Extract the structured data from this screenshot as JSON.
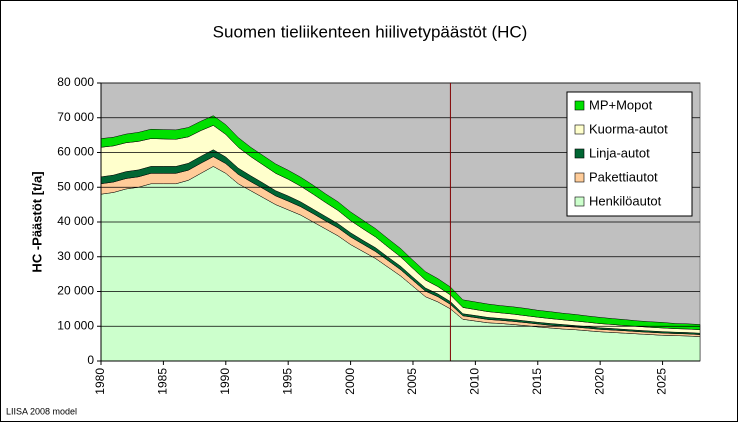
{
  "chart_data": {
    "type": "stacked-area",
    "title": "Suomen tieliikenteen hiilivetypäästöt (HC)",
    "y_label": "HC -Päästöt [t/a]",
    "footnote": "LIISA 2008 model",
    "x": [
      1980,
      1981,
      1982,
      1983,
      1984,
      1985,
      1986,
      1987,
      1988,
      1989,
      1990,
      1991,
      1992,
      1993,
      1994,
      1995,
      1996,
      1997,
      1998,
      1999,
      2000,
      2001,
      2002,
      2003,
      2004,
      2005,
      2006,
      2007,
      2008,
      2009,
      2010,
      2011,
      2012,
      2013,
      2014,
      2015,
      2016,
      2017,
      2018,
      2019,
      2020,
      2021,
      2022,
      2023,
      2024,
      2025,
      2026,
      2027,
      2028
    ],
    "series": [
      {
        "name": "Henkilöautot",
        "color": "#ccffcc",
        "values": [
          48000,
          48500,
          49500,
          50000,
          51000,
          51000,
          51000,
          52000,
          54000,
          56000,
          54000,
          51000,
          49000,
          47000,
          45000,
          43500,
          42000,
          40000,
          38000,
          36000,
          33500,
          31500,
          29500,
          27000,
          24500,
          21500,
          18500,
          17000,
          15000,
          12000,
          11500,
          11000,
          10800,
          10500,
          10200,
          9800,
          9500,
          9200,
          9000,
          8700,
          8400,
          8200,
          8000,
          7800,
          7600,
          7400,
          7300,
          7200,
          7000
        ]
      },
      {
        "name": "Pakettiautot",
        "color": "#ffcc99",
        "values": [
          3000,
          3000,
          3000,
          3000,
          3000,
          3000,
          3000,
          2900,
          2900,
          2800,
          2800,
          2700,
          2600,
          2600,
          2500,
          2500,
          2400,
          2400,
          2300,
          2300,
          2200,
          2100,
          2000,
          1900,
          1800,
          1700,
          1600,
          1500,
          1300,
          1000,
          1000,
          950,
          900,
          900,
          850,
          850,
          800,
          800,
          750,
          750,
          700,
          700,
          700,
          650,
          650,
          650,
          600,
          600,
          600
        ]
      },
      {
        "name": "Linja-autot",
        "color": "#006633",
        "values": [
          2000,
          2000,
          2000,
          2000,
          2000,
          2000,
          2000,
          2000,
          2000,
          2000,
          1900,
          1800,
          1700,
          1600,
          1500,
          1500,
          1400,
          1300,
          1300,
          1200,
          1200,
          1100,
          1100,
          1000,
          1000,
          900,
          900,
          800,
          800,
          600,
          600,
          600,
          550,
          550,
          500,
          500,
          500,
          500,
          450,
          450,
          450,
          450,
          400,
          400,
          400,
          400,
          400,
          400,
          400
        ]
      },
      {
        "name": "Kuorma-autot",
        "color": "#ffffcc",
        "values": [
          8500,
          8400,
          8300,
          8200,
          8000,
          7900,
          7800,
          7600,
          7400,
          7000,
          6500,
          6000,
          5500,
          5200,
          5000,
          4800,
          4500,
          4300,
          4000,
          3800,
          3500,
          3300,
          3100,
          2900,
          2700,
          2500,
          2300,
          2100,
          1900,
          1800,
          1700,
          1650,
          1600,
          1550,
          1500,
          1450,
          1400,
          1350,
          1300,
          1250,
          1200,
          1150,
          1100,
          1100,
          1050,
          1050,
          1000,
          1000,
          1000
        ]
      },
      {
        "name": "MP+Mopot",
        "color": "#00e000",
        "values": [
          2500,
          2500,
          2500,
          2600,
          2700,
          2700,
          2700,
          2700,
          2700,
          2800,
          2800,
          2800,
          2700,
          2700,
          2700,
          2600,
          2600,
          2600,
          2500,
          2500,
          2500,
          2500,
          2400,
          2400,
          2400,
          2400,
          2400,
          2300,
          2300,
          2200,
          2200,
          2200,
          2100,
          2100,
          2100,
          2000,
          2000,
          1900,
          1900,
          1800,
          1800,
          1700,
          1700,
          1600,
          1600,
          1600,
          1500,
          1500,
          1500
        ]
      }
    ],
    "xlim": [
      1980,
      2028
    ],
    "xticks": [
      1980,
      1985,
      1990,
      1995,
      2000,
      2005,
      2010,
      2015,
      2020,
      2025
    ],
    "ylim": [
      0,
      80000
    ],
    "yticks": [
      0,
      {
        "value": 10000,
        "label": "10 000"
      },
      {
        "value": 20000,
        "label": "20 000"
      },
      {
        "value": 30000,
        "label": "30 000"
      },
      {
        "value": 40000,
        "label": "40 000"
      },
      {
        "value": 50000,
        "label": "50 000"
      },
      {
        "value": 60000,
        "label": "60 000"
      },
      {
        "value": 70000,
        "label": "70 000"
      },
      {
        "value": 80000,
        "label": "80 000"
      }
    ],
    "grid": true,
    "vline": {
      "x": 2008,
      "color": "#800000"
    },
    "legend": "upper right"
  }
}
